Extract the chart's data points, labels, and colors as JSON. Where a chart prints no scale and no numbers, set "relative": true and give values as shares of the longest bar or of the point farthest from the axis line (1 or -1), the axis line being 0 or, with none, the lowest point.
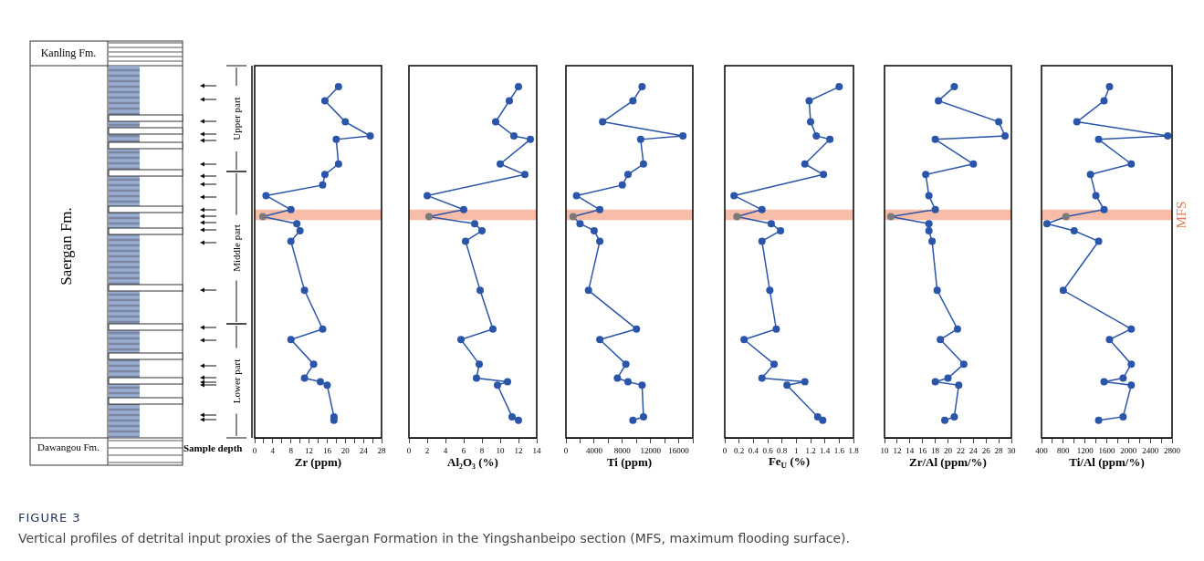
{
  "chart_data": [
    {
      "type": "other",
      "annotations": [
        "Kanling Fm.",
        "Saergan Fm.",
        "Dawangou Fm.",
        "Sample depth",
        "Upper part",
        "Middle part",
        "Lower part",
        "FIGURE 3",
        "Vertical profiles of detrital input proxies of the Saergan Formation in the Yingshanbeipo section (MFS, maximum flooding surface)."
      ]
    },
    {
      "type": "line",
      "relative": true,
      "xlabel": "Zr (ppm)",
      "xlim": [
        0,
        28
      ],
      "xticks": [
        0,
        {
          "value": 2,
          "label": null
        },
        4,
        {
          "value": 6,
          "label": null
        },
        8,
        {
          "value": 10,
          "label": null
        },
        12,
        {
          "value": 14,
          "label": null
        },
        16,
        {
          "value": 18,
          "label": null
        },
        20,
        {
          "value": 22,
          "label": null
        },
        24,
        {
          "value": 26,
          "label": null
        },
        28
      ],
      "marker": "circle",
      "bands": [
        {
          "axis": "y",
          "from": 0.62,
          "to": 0.65,
          "color": "#f7b19a"
        }
      ],
      "series": [
        {
          "color": "#2b55a8",
          "colors": [
            "#2b55a8",
            "#2b55a8",
            "#2b55a8",
            "#2b55a8",
            "#2b55a8",
            "#2b55a8",
            "#2b55a8",
            "#2b55a8",
            "#2b55a8",
            "#2b55a8",
            "#7a7a7a",
            "#2b55a8",
            "#2b55a8",
            "#2b55a8",
            "#2b55a8",
            "#2b55a8",
            "#2b55a8",
            "#2b55a8",
            "#2b55a8",
            "#2b55a8",
            "#2b55a8",
            "#2b55a8",
            "#2b55a8"
          ],
          "x": [
            18.5,
            15.5,
            20,
            25.5,
            18,
            18.5,
            15.5,
            15,
            2.5,
            8,
            1.8,
            9.3,
            10,
            8,
            11,
            15,
            8,
            13,
            11,
            14.5,
            16,
            17.5,
            17.5
          ],
          "values": [
            1,
            0.96,
            0.9,
            0.86,
            0.85,
            0.78,
            0.75,
            0.72,
            0.69,
            0.65,
            0.63,
            0.61,
            0.59,
            0.56,
            0.42,
            0.31,
            0.28,
            0.21,
            0.17,
            0.16,
            0.15,
            0.06,
            0.05
          ]
        }
      ]
    },
    {
      "type": "line",
      "relative": true,
      "xlabel": "Al₂O₃ (%)",
      "xlim": [
        0,
        14
      ],
      "xticks": [
        0,
        2,
        4,
        6,
        8,
        10,
        12,
        14
      ],
      "marker": "circle",
      "bands": [
        {
          "axis": "y",
          "from": 0.62,
          "to": 0.65,
          "color": "#f7b19a"
        }
      ],
      "series": [
        {
          "color": "#2b55a8",
          "colors": [
            "#2b55a8",
            "#2b55a8",
            "#2b55a8",
            "#2b55a8",
            "#2b55a8",
            "#2b55a8",
            "#2b55a8",
            "#2b55a8",
            "#2b55a8",
            "#7a7a7a",
            "#2b55a8",
            "#2b55a8",
            "#2b55a8",
            "#2b55a8",
            "#2b55a8",
            "#2b55a8",
            "#2b55a8",
            "#2b55a8",
            "#2b55a8",
            "#2b55a8",
            "#2b55a8",
            "#2b55a8"
          ],
          "x": [
            12,
            11,
            9.5,
            11.5,
            13.3,
            10,
            12.7,
            2,
            6,
            2.2,
            7.2,
            8,
            6.2,
            7.8,
            9.2,
            5.7,
            7.7,
            7.4,
            10.8,
            9.7,
            11.3,
            12
          ],
          "values": [
            1,
            0.96,
            0.9,
            0.86,
            0.85,
            0.78,
            0.75,
            0.69,
            0.65,
            0.63,
            0.61,
            0.59,
            0.56,
            0.42,
            0.31,
            0.28,
            0.21,
            0.17,
            0.16,
            0.15,
            0.06,
            0.05
          ]
        }
      ]
    },
    {
      "type": "line",
      "relative": true,
      "xlabel": "Ti (ppm)",
      "xlim": [
        0,
        18000
      ],
      "xticks": [
        0,
        {
          "value": 2000,
          "label": null
        },
        4000,
        {
          "value": 6000,
          "label": null
        },
        8000,
        {
          "value": 10000,
          "label": null
        },
        12000,
        {
          "value": 14000,
          "label": null
        },
        16000,
        {
          "value": 18000,
          "label": null
        }
      ],
      "marker": "circle",
      "bands": [
        {
          "axis": "y",
          "from": 0.62,
          "to": 0.65,
          "color": "#f7b19a"
        }
      ],
      "series": [
        {
          "color": "#2b55a8",
          "colors": [
            "#2b55a8",
            "#2b55a8",
            "#2b55a8",
            "#2b55a8",
            "#2b55a8",
            "#2b55a8",
            "#2b55a8",
            "#2b55a8",
            "#2b55a8",
            "#2b55a8",
            "#7a7a7a",
            "#2b55a8",
            "#2b55a8",
            "#2b55a8",
            "#2b55a8",
            "#2b55a8",
            "#2b55a8",
            "#2b55a8",
            "#2b55a8",
            "#2b55a8",
            "#2b55a8",
            "#2b55a8",
            "#2b55a8"
          ],
          "x": [
            10800,
            9500,
            5200,
            16600,
            10600,
            11000,
            8800,
            8000,
            1500,
            4800,
            1000,
            2000,
            4000,
            4800,
            3200,
            10000,
            4800,
            8500,
            7300,
            8800,
            10800,
            11000,
            9500
          ],
          "values": [
            1,
            0.96,
            0.9,
            0.86,
            0.85,
            0.78,
            0.75,
            0.72,
            0.69,
            0.65,
            0.63,
            0.61,
            0.59,
            0.56,
            0.42,
            0.31,
            0.28,
            0.21,
            0.17,
            0.16,
            0.15,
            0.06,
            0.05
          ]
        }
      ]
    },
    {
      "type": "line",
      "relative": true,
      "xlabel": "Fe$_{U}$ (%)",
      "xlim": [
        0,
        1.8
      ],
      "xticks": [
        0,
        0.2,
        0.4,
        0.6,
        0.8,
        1,
        1.2,
        1.4,
        1.6,
        1.8
      ],
      "marker": "circle",
      "bands": [
        {
          "axis": "y",
          "from": 0.62,
          "to": 0.65,
          "color": "#f7b19a"
        }
      ],
      "series": [
        {
          "color": "#2b55a8",
          "colors": [
            "#2b55a8",
            "#2b55a8",
            "#2b55a8",
            "#2b55a8",
            "#2b55a8",
            "#2b55a8",
            "#2b55a8",
            "#2b55a8",
            "#2b55a8",
            "#7a7a7a",
            "#2b55a8",
            "#2b55a8",
            "#2b55a8",
            "#2b55a8",
            "#2b55a8",
            "#2b55a8",
            "#2b55a8",
            "#2b55a8",
            "#2b55a8",
            "#2b55a8",
            "#2b55a8",
            "#2b55a8"
          ],
          "x": [
            1.6,
            1.18,
            1.2,
            1.28,
            1.47,
            1.12,
            1.38,
            0.13,
            0.52,
            0.17,
            0.65,
            0.78,
            0.52,
            0.63,
            0.72,
            0.27,
            0.69,
            0.52,
            1.12,
            0.87,
            1.3,
            1.37
          ],
          "values": [
            1,
            0.96,
            0.9,
            0.86,
            0.85,
            0.78,
            0.75,
            0.69,
            0.65,
            0.63,
            0.61,
            0.59,
            0.56,
            0.42,
            0.31,
            0.28,
            0.21,
            0.17,
            0.16,
            0.15,
            0.06,
            0.05
          ]
        }
      ]
    },
    {
      "type": "line",
      "relative": true,
      "xlabel": "Zr/Al (ppm/%)",
      "xlim": [
        10,
        30
      ],
      "xticks": [
        10,
        12,
        14,
        16,
        18,
        20,
        22,
        24,
        26,
        28,
        30
      ],
      "marker": "circle",
      "bands": [
        {
          "axis": "y",
          "from": 0.62,
          "to": 0.65,
          "color": "#f7b19a"
        }
      ],
      "series": [
        {
          "color": "#2b55a8",
          "colors": [
            "#2b55a8",
            "#2b55a8",
            "#2b55a8",
            "#2b55a8",
            "#2b55a8",
            "#2b55a8",
            "#2b55a8",
            "#2b55a8",
            "#2b55a8",
            "#7a7a7a",
            "#2b55a8",
            "#2b55a8",
            "#2b55a8",
            "#2b55a8",
            "#2b55a8",
            "#2b55a8",
            "#2b55a8",
            "#2b55a8",
            "#2b55a8",
            "#2b55a8",
            "#2b55a8",
            "#2b55a8"
          ],
          "x": [
            21,
            18.5,
            28,
            29,
            18,
            24,
            16.5,
            17,
            18,
            11,
            17,
            17,
            17.5,
            18.3,
            21.5,
            18.8,
            22.5,
            20,
            18,
            21.7,
            21,
            19.5
          ],
          "values": [
            1,
            0.96,
            0.9,
            0.86,
            0.85,
            0.78,
            0.75,
            0.69,
            0.65,
            0.63,
            0.61,
            0.59,
            0.56,
            0.42,
            0.31,
            0.28,
            0.21,
            0.17,
            0.16,
            0.15,
            0.06,
            0.05
          ]
        }
      ]
    },
    {
      "type": "line",
      "relative": true,
      "xlabel": "Ti/Al (ppm/%)",
      "xlim": [
        400,
        2800
      ],
      "xticks": [
        400,
        {
          "value": 600,
          "label": null
        },
        800,
        {
          "value": 1000,
          "label": null
        },
        1200,
        {
          "value": 1400,
          "label": null
        },
        1600,
        {
          "value": 1800,
          "label": null
        },
        2000,
        {
          "value": 2200,
          "label": null
        },
        2400,
        {
          "value": 2600,
          "label": null
        },
        2800
      ],
      "marker": "circle",
      "bands": [
        {
          "axis": "y",
          "from": 0.62,
          "to": 0.65,
          "color": "#f7b19a",
          "label": "MFS"
        }
      ],
      "series": [
        {
          "color": "#2b55a8",
          "colors": [
            "#2b55a8",
            "#2b55a8",
            "#2b55a8",
            "#2b55a8",
            "#2b55a8",
            "#2b55a8",
            "#2b55a8",
            "#2b55a8",
            "#2b55a8",
            "#7a7a7a",
            "#2b55a8",
            "#2b55a8",
            "#2b55a8",
            "#2b55a8",
            "#2b55a8",
            "#2b55a8",
            "#2b55a8",
            "#2b55a8",
            "#2b55a8",
            "#2b55a8",
            "#2b55a8",
            "#2b55a8"
          ],
          "x": [
            1650,
            1550,
            1050,
            2720,
            1450,
            2050,
            1300,
            1400,
            1550,
            850,
            500,
            1000,
            1450,
            800,
            2050,
            1650,
            2050,
            1900,
            1550,
            2050,
            1900,
            1450
          ],
          "values": [
            1,
            0.96,
            0.9,
            0.86,
            0.85,
            0.78,
            0.75,
            0.69,
            0.65,
            0.63,
            0.61,
            0.59,
            0.56,
            0.42,
            0.31,
            0.28,
            0.21,
            0.17,
            0.16,
            0.15,
            0.06,
            0.05
          ]
        }
      ]
    }
  ]
}
